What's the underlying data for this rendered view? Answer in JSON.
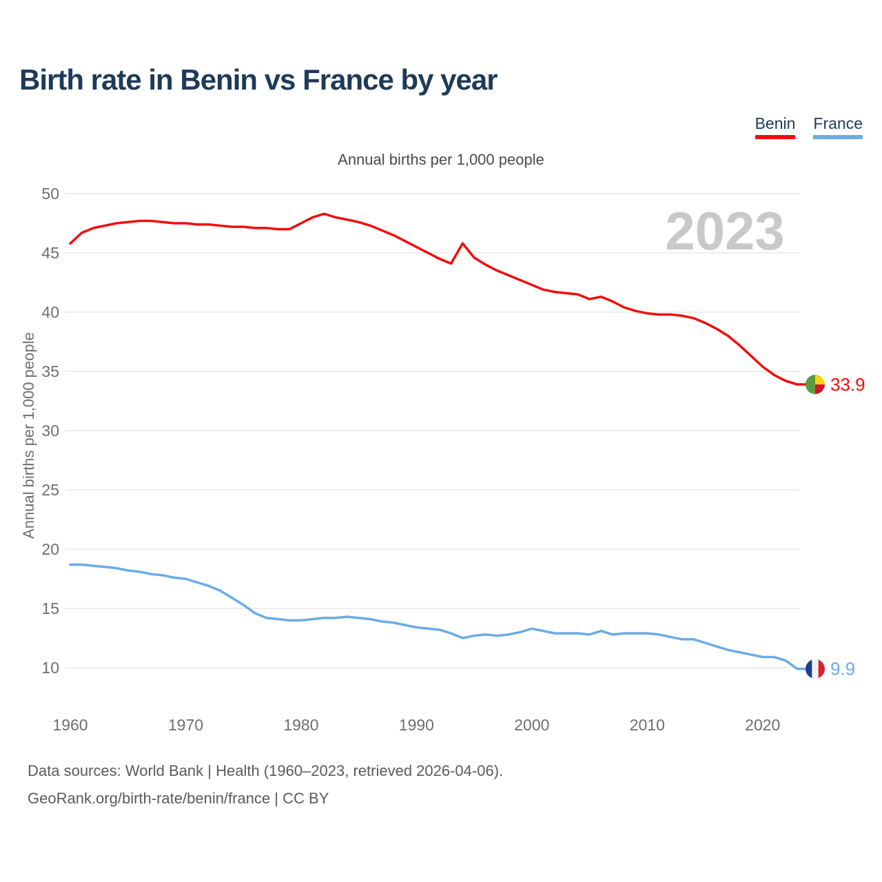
{
  "title": "Birth rate in Benin vs France by year",
  "subtitle": "Annual births per 1,000 people",
  "footer": {
    "line1": "Data sources: World Bank | Health (1960–2023, retrieved 2026-04-06).",
    "line2": "GeoRank.org/birth-rate/benin/france | CC BY"
  },
  "colors": {
    "background": "#ffffff",
    "grid": "#e7e7e7",
    "tick_text": "#6e6e6e",
    "title_text": "#1e3a5a",
    "subtitle_text": "#4a4a4a",
    "watermark_text": "#c9c9c9",
    "footer_text": "#5a5a5a"
  },
  "chart_data": {
    "type": "line",
    "title": "Birth rate in Benin vs France by year",
    "ylabel": "Annual births per 1,000 people",
    "xlabel": "",
    "watermark": "2023",
    "grid": "horizontal",
    "legend_position": "top-right",
    "ylim": [
      10,
      50
    ],
    "xlim": [
      1960,
      2023
    ],
    "y_ticks": [
      10,
      15,
      20,
      25,
      30,
      35,
      40,
      45,
      50
    ],
    "x_ticks": [
      1960,
      1970,
      1980,
      1990,
      2000,
      2010,
      2020
    ],
    "x": [
      1960,
      1961,
      1962,
      1963,
      1964,
      1965,
      1966,
      1967,
      1968,
      1969,
      1970,
      1971,
      1972,
      1973,
      1974,
      1975,
      1976,
      1977,
      1978,
      1979,
      1980,
      1981,
      1982,
      1983,
      1984,
      1985,
      1986,
      1987,
      1988,
      1989,
      1990,
      1991,
      1992,
      1993,
      1994,
      1995,
      1996,
      1997,
      1998,
      1999,
      2000,
      2001,
      2002,
      2003,
      2004,
      2005,
      2006,
      2007,
      2008,
      2009,
      2010,
      2011,
      2012,
      2013,
      2014,
      2015,
      2016,
      2017,
      2018,
      2019,
      2020,
      2021,
      2022,
      2023
    ],
    "series": [
      {
        "name": "Benin",
        "color": "#f40b0b",
        "end_label": "33.9",
        "end_year": 2023,
        "flag": "benin",
        "flag_colors": [
          "#5d9b3e",
          "#fcd116",
          "#d5152f"
        ],
        "values": [
          45.8,
          46.7,
          47.1,
          47.3,
          47.5,
          47.6,
          47.7,
          47.7,
          47.6,
          47.5,
          47.5,
          47.4,
          47.4,
          47.3,
          47.2,
          47.2,
          47.1,
          47.1,
          47.0,
          47.0,
          47.5,
          48.0,
          48.3,
          48.0,
          47.8,
          47.6,
          47.3,
          46.9,
          46.5,
          46.0,
          45.5,
          45.0,
          44.5,
          44.1,
          45.8,
          44.6,
          44.0,
          43.5,
          43.1,
          42.7,
          42.3,
          41.9,
          41.7,
          41.6,
          41.5,
          41.1,
          41.3,
          40.9,
          40.4,
          40.1,
          39.9,
          39.8,
          39.8,
          39.7,
          39.5,
          39.1,
          38.6,
          38.0,
          37.2,
          36.3,
          35.4,
          34.7,
          34.2,
          33.9
        ]
      },
      {
        "name": "France",
        "color": "#6aabe8",
        "end_label": "9.9",
        "end_year": 2023,
        "flag": "france",
        "flag_colors": [
          "#1c3f94",
          "#f2f2f2",
          "#dc1f33"
        ],
        "values": [
          18.7,
          18.7,
          18.6,
          18.5,
          18.4,
          18.2,
          18.1,
          17.9,
          17.8,
          17.6,
          17.5,
          17.2,
          16.9,
          16.5,
          15.9,
          15.3,
          14.6,
          14.2,
          14.1,
          14.0,
          14.0,
          14.1,
          14.2,
          14.2,
          14.3,
          14.2,
          14.1,
          13.9,
          13.8,
          13.6,
          13.4,
          13.3,
          13.2,
          12.9,
          12.5,
          12.7,
          12.8,
          12.7,
          12.8,
          13.0,
          13.3,
          13.1,
          12.9,
          12.9,
          12.9,
          12.8,
          13.1,
          12.8,
          12.9,
          12.9,
          12.9,
          12.8,
          12.6,
          12.4,
          12.4,
          12.1,
          11.8,
          11.5,
          11.3,
          11.1,
          10.9,
          10.9,
          10.6,
          9.9
        ]
      }
    ]
  }
}
